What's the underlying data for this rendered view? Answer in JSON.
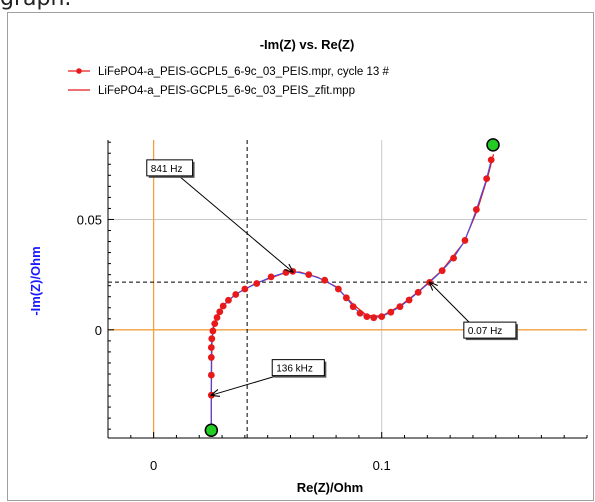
{
  "caption": "graph.",
  "chart_data": {
    "type": "scatter",
    "title": "-Im(Z) vs. Re(Z)",
    "xlabel": "Re(Z)/Ohm",
    "ylabel": "-Im(Z)/Ohm",
    "xlim": [
      -0.02,
      0.19
    ],
    "ylim": [
      -0.049,
      0.086
    ],
    "xticks": [
      0,
      0.1
    ],
    "xtick_labels": [
      "0",
      "0.1"
    ],
    "yticks": [
      0,
      0.05
    ],
    "ytick_labels": [
      "0",
      "0.05"
    ],
    "grid": true,
    "colors": {
      "data": "#e8191a",
      "fit": "#e8191a",
      "ylabel": "#1a1aff",
      "origin": "#f0a040",
      "grid": "#c8c8c8",
      "marker": "#22cc22"
    },
    "series": [
      {
        "name": "LiFePO4-a_PEIS-GCPL5_6-9c_03_PEIS.mpr, cycle 13 #",
        "style": "line+markers",
        "points": [
          [
            0.0253,
            -0.0296
          ],
          [
            0.0253,
            -0.0205
          ],
          [
            0.0253,
            -0.0125
          ],
          [
            0.0253,
            -0.008
          ],
          [
            0.0255,
            -0.004
          ],
          [
            0.026,
            -0.0005
          ],
          [
            0.0268,
            0.0028
          ],
          [
            0.0278,
            0.0056
          ],
          [
            0.029,
            0.0082
          ],
          [
            0.0305,
            0.0108
          ],
          [
            0.0328,
            0.0134
          ],
          [
            0.036,
            0.016
          ],
          [
            0.04,
            0.0185
          ],
          [
            0.0452,
            0.021
          ],
          [
            0.0515,
            0.024
          ],
          [
            0.058,
            0.026
          ],
          [
            0.061,
            0.0265
          ],
          [
            0.068,
            0.025
          ],
          [
            0.075,
            0.0225
          ],
          [
            0.081,
            0.0185
          ],
          [
            0.0845,
            0.0145
          ],
          [
            0.0875,
            0.0105
          ],
          [
            0.0905,
            0.0075
          ],
          [
            0.0935,
            0.006
          ],
          [
            0.0965,
            0.0055
          ],
          [
            0.1,
            0.006
          ],
          [
            0.104,
            0.008
          ],
          [
            0.108,
            0.0105
          ],
          [
            0.112,
            0.0135
          ],
          [
            0.116,
            0.017
          ],
          [
            0.121,
            0.0215
          ],
          [
            0.1265,
            0.0268
          ],
          [
            0.1315,
            0.0325
          ],
          [
            0.1365,
            0.0405
          ],
          [
            0.1415,
            0.0545
          ],
          [
            0.146,
            0.0685
          ],
          [
            0.148,
            0.077
          ]
        ]
      },
      {
        "name": "LiFePO4-a_PEIS-GCPL5_6-9c_03_PEIS_zfit.mpp",
        "style": "line",
        "points": [
          [
            0.0253,
            -0.045
          ],
          [
            0.0253,
            -0.03
          ],
          [
            0.0254,
            -0.015
          ],
          [
            0.0256,
            -0.005
          ],
          [
            0.0262,
            0.0015
          ],
          [
            0.0278,
            0.0058
          ],
          [
            0.0305,
            0.011
          ],
          [
            0.036,
            0.0162
          ],
          [
            0.0452,
            0.0212
          ],
          [
            0.058,
            0.026
          ],
          [
            0.064,
            0.0262
          ],
          [
            0.072,
            0.0238
          ],
          [
            0.08,
            0.0195
          ],
          [
            0.0875,
            0.0115
          ],
          [
            0.0935,
            0.0065
          ],
          [
            0.1,
            0.0062
          ],
          [
            0.108,
            0.0108
          ],
          [
            0.116,
            0.0172
          ],
          [
            0.1265,
            0.027
          ],
          [
            0.136,
            0.0395
          ],
          [
            0.142,
            0.0545
          ],
          [
            0.1465,
            0.0695
          ],
          [
            0.149,
            0.0795
          ]
        ]
      }
    ],
    "endpoint_markers": [
      [
        0.0253,
        -0.0455
      ],
      [
        0.1488,
        0.0838
      ]
    ],
    "crosshairs": {
      "x": 0.041,
      "y": 0.0216
    },
    "annotations": [
      {
        "text": "841 Hz",
        "point": [
          0.061,
          0.0262
        ],
        "box_at": [
          -0.003,
          0.077
        ]
      },
      {
        "text": "0.07 Hz",
        "point": [
          0.121,
          0.0215
        ],
        "box_at": [
          0.136,
          0.0035
        ]
      },
      {
        "text": "136 kHz",
        "point": [
          0.0253,
          -0.0296
        ],
        "box_at": [
          0.052,
          -0.0135
        ]
      }
    ]
  }
}
